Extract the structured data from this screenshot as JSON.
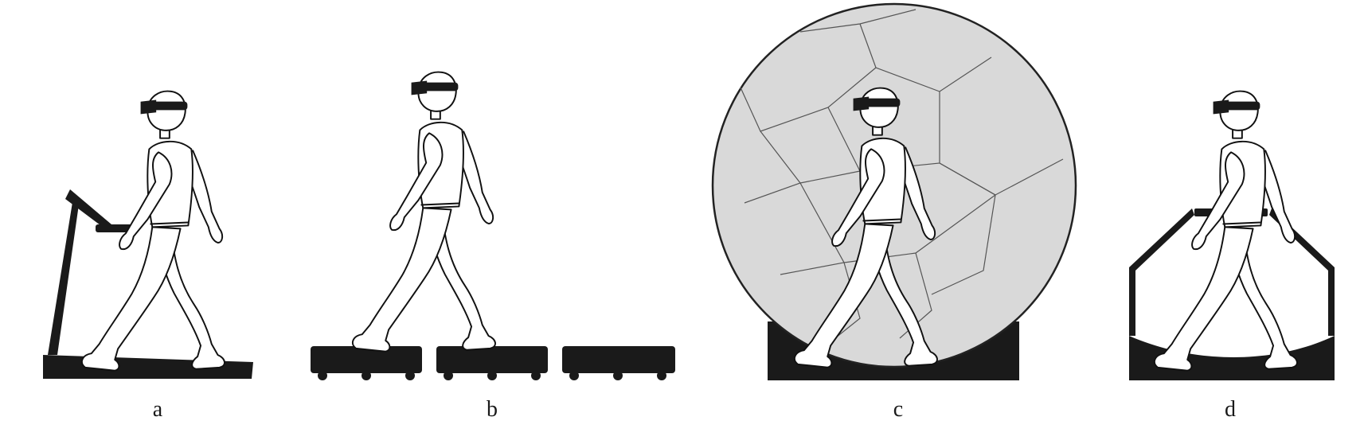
{
  "figure": {
    "panels": [
      {
        "id": "a",
        "label": "a",
        "device": "treadmill"
      },
      {
        "id": "b",
        "label": "b",
        "device": "moving-tiles"
      },
      {
        "id": "c",
        "label": "c",
        "device": "rotating-sphere"
      },
      {
        "id": "d",
        "label": "d",
        "device": "low-friction-platform"
      }
    ],
    "colors": {
      "ink": "#111111",
      "device": "#1a1a1a",
      "sphere_fill": "#d9d9d9",
      "background": "#ffffff"
    }
  }
}
